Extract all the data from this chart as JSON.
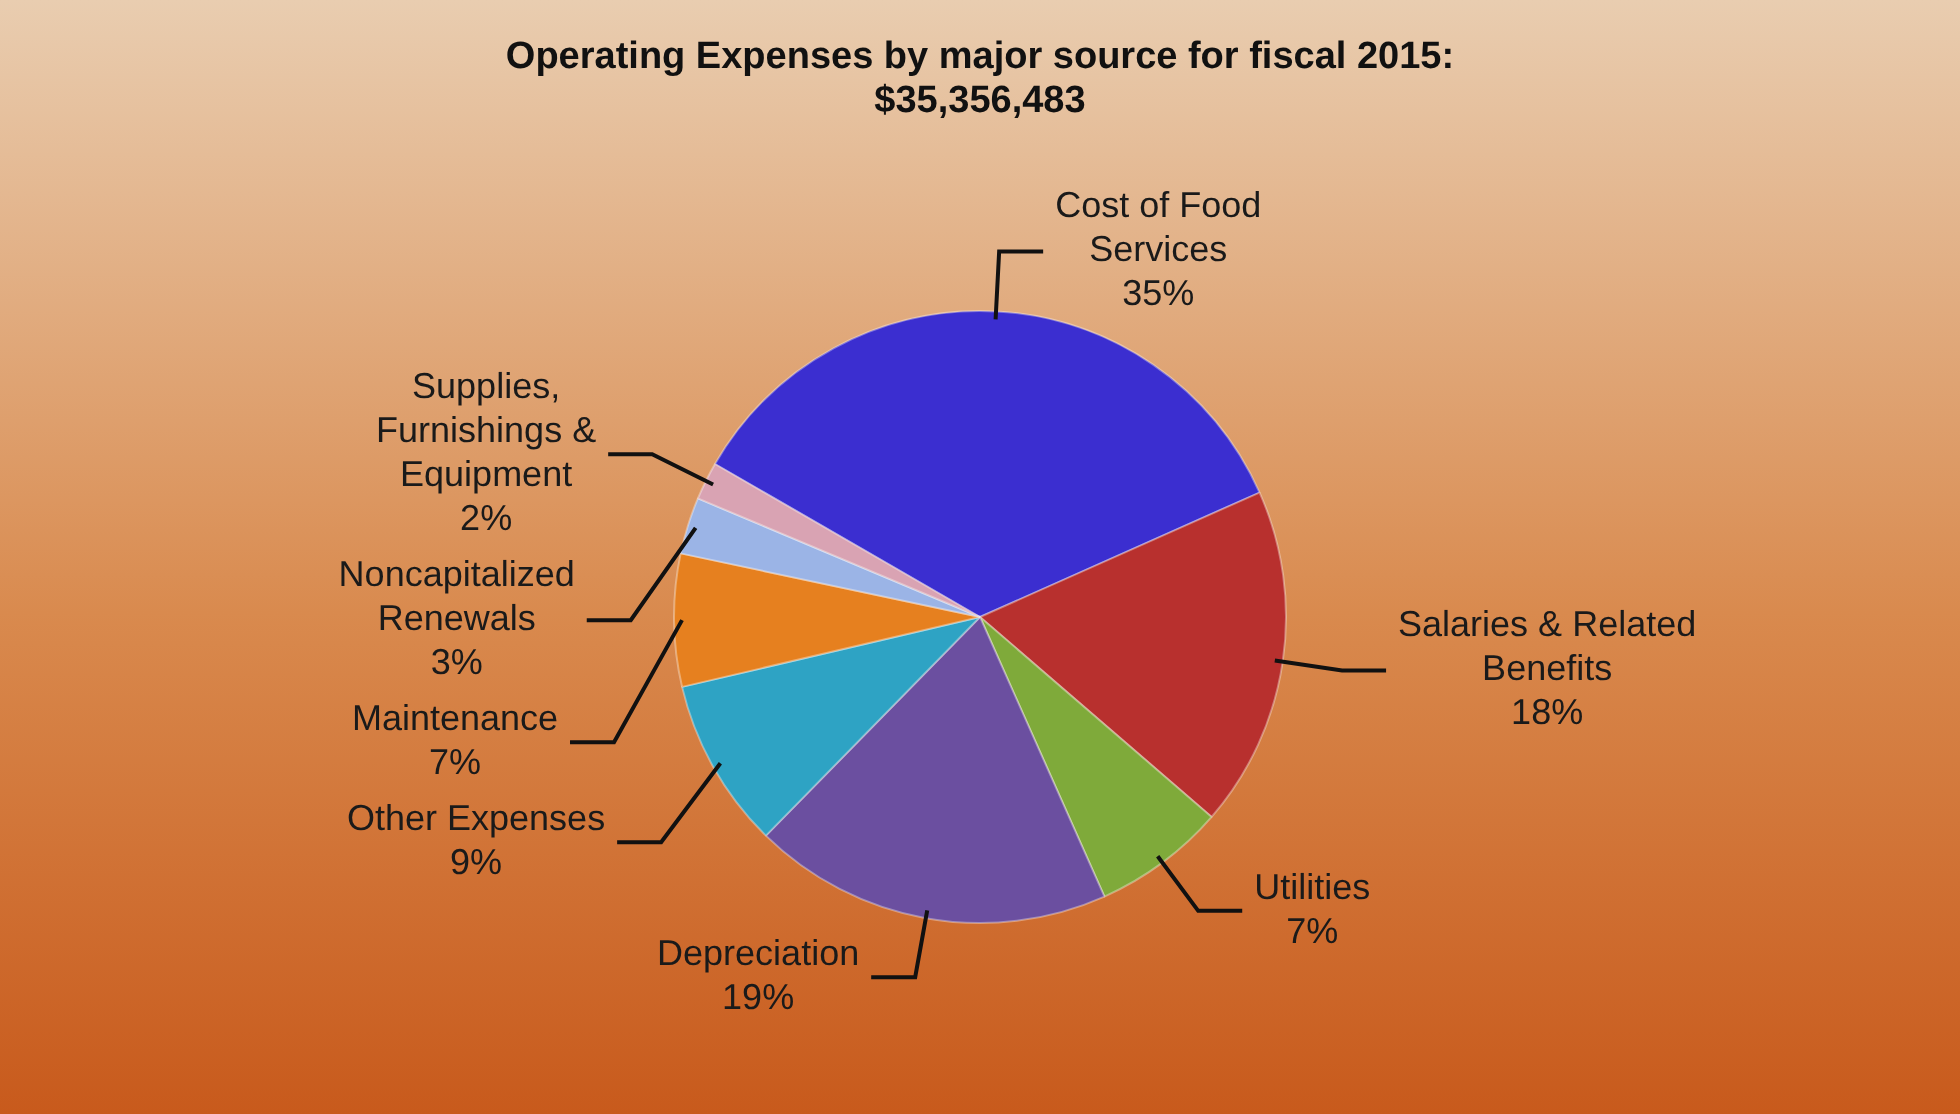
{
  "chart_data": {
    "type": "pie",
    "title": "Operating Expenses by major source for fiscal 2015: $35,356,483",
    "categories": [
      "Cost of Food Services",
      "Salaries & Related Benefits",
      "Utilities",
      "Depreciation",
      "Other Expenses",
      "Maintenance",
      "Noncapitalized Renewals",
      "Supplies, Furnishings & Equipment"
    ],
    "values": [
      35,
      18,
      7,
      19,
      9,
      7,
      3,
      2
    ],
    "colors": [
      "#3b2ed0",
      "#b8302e",
      "#7faa3a",
      "#6b4fa0",
      "#2ea3c4",
      "#e6801f",
      "#9bb4e6",
      "#d9a3b3"
    ],
    "value_labels": [
      "35%",
      "18%",
      "7%",
      "19%",
      "9%",
      "7%",
      "3%",
      "2%"
    ]
  }
}
